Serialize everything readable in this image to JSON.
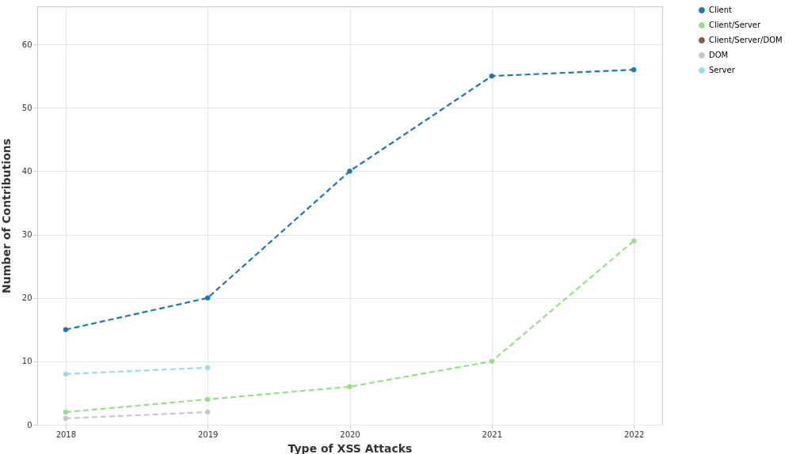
{
  "chart_data": {
    "type": "line",
    "xlabel": "Type of XSS Attacks",
    "ylabel": "Number of Contributions",
    "xlim": [
      2017.8,
      2022.2
    ],
    "xticks": [
      2018,
      2019,
      2020,
      2021,
      2022
    ],
    "ylim": [
      0,
      66
    ],
    "yticks": [
      0,
      10,
      20,
      30,
      40,
      50,
      60
    ],
    "grid": true,
    "legend": "right",
    "marker": "circle",
    "line_style": "dashed",
    "series": [
      {
        "name": "Client",
        "color": "#1f77b4",
        "x": [
          2018,
          2019,
          2020,
          2021,
          2022
        ],
        "values": [
          15,
          20,
          40,
          55,
          56
        ]
      },
      {
        "name": "Client/Server",
        "color": "#98df8a",
        "x": [
          2018,
          2019,
          2020,
          2021,
          2022
        ],
        "values": [
          2,
          4,
          6,
          10,
          29
        ]
      },
      {
        "name": "Client/Server/DOM",
        "color": "#8c564b"
      },
      {
        "name": "DOM",
        "color": "#c7c7c7",
        "x": [
          2018,
          2019
        ],
        "values": [
          1,
          2
        ]
      },
      {
        "name": "Server",
        "color": "#9edae5",
        "x": [
          2018,
          2019
        ],
        "values": [
          8,
          9
        ]
      }
    ]
  }
}
